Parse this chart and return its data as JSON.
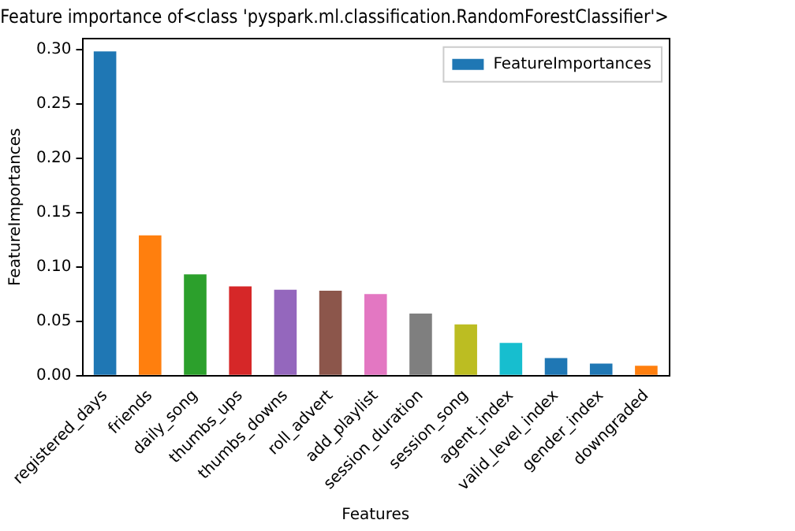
{
  "chart_data": {
    "type": "bar",
    "title": "Feature importance of<class 'pyspark.ml.classification.RandomForestClassifier'>",
    "xlabel": "Features",
    "ylabel": "FeatureImportances",
    "categories": [
      "registered_days",
      "friends",
      "daily_song",
      "thumbs_ups",
      "thumbs_downs",
      "roll_advert",
      "add_playlist",
      "session_duration",
      "session_song",
      "agent_index",
      "valid_level_index",
      "gender_index",
      "downgraded"
    ],
    "series": [
      {
        "name": "FeatureImportances",
        "color": "#1f77b4",
        "colors": [
          "#1f77b4",
          "#ff7f0e",
          "#2ca02c",
          "#d62728",
          "#9467bd",
          "#8c564b",
          "#e377c2",
          "#7f7f7f",
          "#bcbd22",
          "#17becf",
          "#1f77b4",
          "#1f77b4",
          "#ff7f0e"
        ],
        "values": [
          0.298,
          0.129,
          0.093,
          0.082,
          0.079,
          0.078,
          0.075,
          0.057,
          0.047,
          0.03,
          0.016,
          0.011,
          0.009
        ]
      }
    ],
    "ylim": [
      0,
      0.31
    ],
    "yticks": [
      {
        "value": 0,
        "label": "0.00"
      },
      {
        "value": 0.05,
        "label": "0.05"
      },
      {
        "value": 0.1,
        "label": "0.10"
      },
      {
        "value": 0.15,
        "label": "0.15"
      },
      {
        "value": 0.2,
        "label": "0.20"
      },
      {
        "value": 0.25,
        "label": "0.25"
      },
      {
        "value": 0.3,
        "label": "0.30"
      }
    ],
    "grid": false,
    "legend": "top right"
  }
}
